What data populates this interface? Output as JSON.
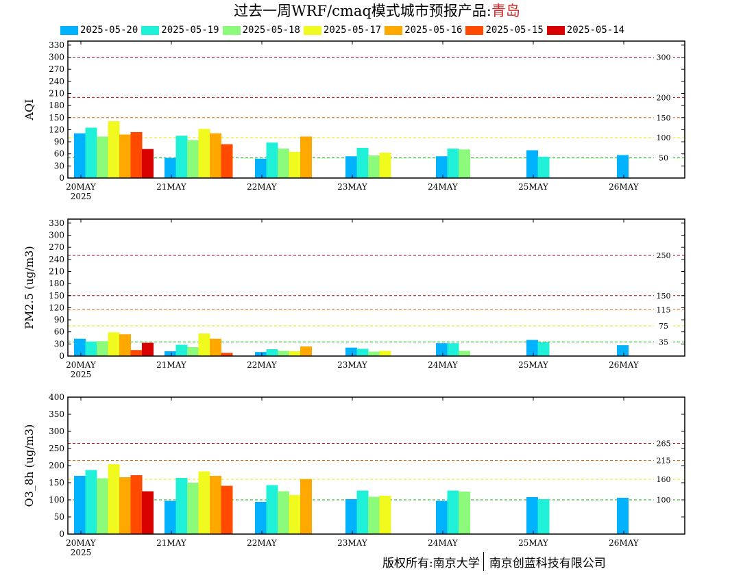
{
  "header": {
    "title_main": "过去一周WRF/cmaq模式城市预报产品:",
    "title_city": "青岛"
  },
  "legend": [
    {
      "label": "2025-05-20",
      "color": "#00b2ff"
    },
    {
      "label": "2025-05-19",
      "color": "#1ff0d8"
    },
    {
      "label": "2025-05-18",
      "color": "#8cfa7a"
    },
    {
      "label": "2025-05-17",
      "color": "#f0fa1e"
    },
    {
      "label": "2025-05-16",
      "color": "#ffa800"
    },
    {
      "label": "2025-05-15",
      "color": "#ff4a00"
    },
    {
      "label": "2025-05-14",
      "color": "#d90000"
    }
  ],
  "footer": {
    "copyright": "版权所有:南京大学",
    "company": "南京创蓝科技有限公司"
  },
  "chart_data": [
    {
      "type": "bar",
      "ylabel": "AQI",
      "ylim": [
        0,
        340
      ],
      "yticks": [
        0,
        30,
        60,
        90,
        120,
        150,
        180,
        210,
        240,
        270,
        300,
        330
      ],
      "categories": [
        "20MAY",
        "21MAY",
        "22MAY",
        "23MAY",
        "24MAY",
        "25MAY",
        "26MAY"
      ],
      "year_label": "2025",
      "grid": false,
      "thresholds": [
        {
          "value": 300,
          "label": "300",
          "color": "#a0003c"
        },
        {
          "value": 200,
          "label": "200",
          "color": "#c80000"
        },
        {
          "value": 150,
          "label": "150",
          "color": "#e86a00"
        },
        {
          "value": 100,
          "label": "100",
          "color": "#f0e000"
        },
        {
          "value": 50,
          "label": "50",
          "color": "#00b400"
        }
      ],
      "series": [
        {
          "name": "2025-05-20",
          "values": [
            111,
            50,
            48,
            54,
            54,
            69,
            57
          ]
        },
        {
          "name": "2025-05-19",
          "values": [
            125,
            105,
            88,
            75,
            73,
            53,
            null
          ]
        },
        {
          "name": "2025-05-18",
          "values": [
            103,
            94,
            73,
            56,
            71,
            null,
            null
          ]
        },
        {
          "name": "2025-05-17",
          "values": [
            141,
            122,
            65,
            63,
            null,
            null,
            null
          ]
        },
        {
          "name": "2025-05-16",
          "values": [
            108,
            111,
            103,
            null,
            null,
            null,
            null
          ]
        },
        {
          "name": "2025-05-15",
          "values": [
            114,
            84,
            null,
            null,
            null,
            null,
            null
          ]
        },
        {
          "name": "2025-05-14",
          "values": [
            72,
            null,
            null,
            null,
            null,
            null,
            null
          ]
        }
      ]
    },
    {
      "type": "bar",
      "ylabel": "PM2.5 (ug/m3)",
      "ylim": [
        0,
        340
      ],
      "yticks": [
        0,
        30,
        60,
        90,
        120,
        150,
        180,
        210,
        240,
        270,
        300,
        330
      ],
      "categories": [
        "20MAY",
        "21MAY",
        "22MAY",
        "23MAY",
        "24MAY",
        "25MAY",
        "26MAY"
      ],
      "year_label": "2025",
      "grid": false,
      "thresholds": [
        {
          "value": 250,
          "label": "250",
          "color": "#a0003c"
        },
        {
          "value": 150,
          "label": "150",
          "color": "#c80000"
        },
        {
          "value": 115,
          "label": "115",
          "color": "#e86a00"
        },
        {
          "value": 75,
          "label": "75",
          "color": "#f0e000"
        },
        {
          "value": 35,
          "label": "35",
          "color": "#00b400"
        }
      ],
      "series": [
        {
          "name": "2025-05-20",
          "values": [
            43,
            12,
            10,
            21,
            32,
            40,
            27
          ]
        },
        {
          "name": "2025-05-19",
          "values": [
            36,
            28,
            17,
            18,
            32,
            34,
            null
          ]
        },
        {
          "name": "2025-05-18",
          "values": [
            37,
            22,
            13,
            11,
            13,
            null,
            null
          ]
        },
        {
          "name": "2025-05-17",
          "values": [
            59,
            56,
            12,
            13,
            null,
            null,
            null
          ]
        },
        {
          "name": "2025-05-16",
          "values": [
            54,
            43,
            24,
            null,
            null,
            null,
            null
          ]
        },
        {
          "name": "2025-05-15",
          "values": [
            15,
            8,
            null,
            null,
            null,
            null,
            null
          ]
        },
        {
          "name": "2025-05-14",
          "values": [
            33,
            null,
            null,
            null,
            null,
            null,
            null
          ]
        }
      ]
    },
    {
      "type": "bar",
      "ylabel": "O3_8h (ug/m3)",
      "ylim": [
        0,
        400
      ],
      "yticks": [
        0,
        50,
        100,
        150,
        200,
        250,
        300,
        350,
        400
      ],
      "categories": [
        "20MAY",
        "21MAY",
        "22MAY",
        "23MAY",
        "24MAY",
        "25MAY",
        "26MAY"
      ],
      "year_label": "2025",
      "grid": false,
      "thresholds": [
        {
          "value": 265,
          "label": "265",
          "color": "#c80000"
        },
        {
          "value": 215,
          "label": "215",
          "color": "#e86a00"
        },
        {
          "value": 160,
          "label": "160",
          "color": "#f0e000"
        },
        {
          "value": 100,
          "label": "100",
          "color": "#00b400"
        }
      ],
      "series": [
        {
          "name": "2025-05-20",
          "values": [
            170,
            97,
            94,
            102,
            97,
            108,
            106
          ]
        },
        {
          "name": "2025-05-19",
          "values": [
            187,
            164,
            143,
            127,
            127,
            102,
            null
          ]
        },
        {
          "name": "2025-05-18",
          "values": [
            163,
            150,
            125,
            109,
            124,
            null,
            null
          ]
        },
        {
          "name": "2025-05-17",
          "values": [
            204,
            183,
            114,
            112,
            null,
            null,
            null
          ]
        },
        {
          "name": "2025-05-16",
          "values": [
            166,
            170,
            161,
            null,
            null,
            null,
            null
          ]
        },
        {
          "name": "2025-05-15",
          "values": [
            172,
            141,
            null,
            null,
            null,
            null,
            null
          ]
        },
        {
          "name": "2025-05-14",
          "values": [
            125,
            null,
            null,
            null,
            null,
            null,
            null
          ]
        }
      ]
    }
  ]
}
